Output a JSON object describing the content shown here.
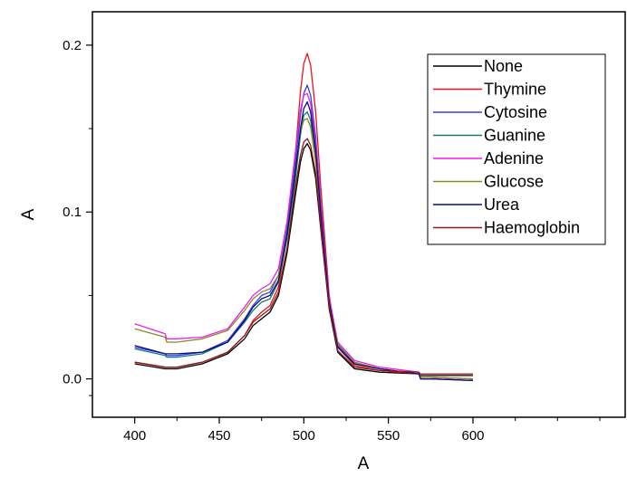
{
  "chart_data": {
    "type": "line",
    "title": "",
    "xlabel": "A",
    "ylabel": "A",
    "xlim": [
      375,
      690
    ],
    "ylim": [
      -0.023,
      0.22
    ],
    "x_ticks": [
      400,
      450,
      500,
      550,
      600
    ],
    "x_tick_labels": [
      "400",
      "450",
      "500",
      "550",
      "600"
    ],
    "y_ticks": [
      0.0,
      0.1,
      0.2
    ],
    "y_tick_labels": [
      "0.0",
      "0.1",
      "0.2"
    ],
    "grid": false,
    "legend_position": "top-right",
    "x": [
      400,
      418,
      419,
      425,
      440,
      455,
      465,
      470,
      475,
      480,
      485,
      490,
      495,
      498,
      500,
      502,
      504,
      507,
      510,
      515,
      520,
      530,
      545,
      568,
      569,
      575,
      600
    ],
    "series": [
      {
        "name": "None",
        "color": "#000000",
        "values": [
          0.009,
          0.006,
          0.006,
          0.006,
          0.009,
          0.015,
          0.024,
          0.032,
          0.036,
          0.04,
          0.05,
          0.075,
          0.11,
          0.13,
          0.138,
          0.141,
          0.137,
          0.12,
          0.09,
          0.042,
          0.016,
          0.006,
          0.004,
          0.003,
          0.002,
          0.002,
          0.002
        ]
      },
      {
        "name": "Thymine",
        "color": "#e8141c",
        "values": [
          0.01,
          0.007,
          0.007,
          0.007,
          0.01,
          0.016,
          0.026,
          0.035,
          0.04,
          0.044,
          0.055,
          0.085,
          0.135,
          0.172,
          0.189,
          0.195,
          0.188,
          0.16,
          0.115,
          0.05,
          0.019,
          0.008,
          0.005,
          0.003,
          0.001,
          0.001,
          0.0
        ]
      },
      {
        "name": "Cytosine",
        "color": "#3a3ae8",
        "values": [
          0.019,
          0.015,
          0.014,
          0.014,
          0.016,
          0.023,
          0.036,
          0.044,
          0.05,
          0.052,
          0.062,
          0.09,
          0.13,
          0.158,
          0.171,
          0.176,
          0.17,
          0.145,
          0.105,
          0.048,
          0.02,
          0.01,
          0.006,
          0.003,
          0.0,
          0.0,
          -0.001
        ]
      },
      {
        "name": "Guanine",
        "color": "#0e7f6e",
        "values": [
          0.018,
          0.014,
          0.013,
          0.013,
          0.015,
          0.022,
          0.034,
          0.041,
          0.046,
          0.048,
          0.058,
          0.084,
          0.12,
          0.146,
          0.158,
          0.16,
          0.155,
          0.133,
          0.097,
          0.045,
          0.019,
          0.009,
          0.006,
          0.003,
          0.0,
          0.0,
          -0.001
        ]
      },
      {
        "name": "Adenine",
        "color": "#ee1ee8",
        "values": [
          0.033,
          0.027,
          0.024,
          0.024,
          0.025,
          0.03,
          0.043,
          0.05,
          0.054,
          0.057,
          0.066,
          0.094,
          0.136,
          0.161,
          0.17,
          0.171,
          0.165,
          0.141,
          0.102,
          0.049,
          0.022,
          0.011,
          0.007,
          0.004,
          0.001,
          0.001,
          0.0
        ]
      },
      {
        "name": "Glucose",
        "color": "#8a8a22",
        "values": [
          0.03,
          0.025,
          0.022,
          0.022,
          0.024,
          0.029,
          0.041,
          0.048,
          0.052,
          0.054,
          0.062,
          0.087,
          0.125,
          0.148,
          0.155,
          0.156,
          0.151,
          0.13,
          0.095,
          0.046,
          0.021,
          0.01,
          0.006,
          0.003,
          0.001,
          0.001,
          0.0
        ]
      },
      {
        "name": "Urea",
        "color": "#0a0a7a",
        "values": [
          0.02,
          0.015,
          0.015,
          0.015,
          0.016,
          0.022,
          0.035,
          0.043,
          0.048,
          0.05,
          0.059,
          0.086,
          0.124,
          0.15,
          0.162,
          0.166,
          0.16,
          0.137,
          0.099,
          0.046,
          0.019,
          0.009,
          0.006,
          0.003,
          0.0,
          0.0,
          -0.001
        ]
      },
      {
        "name": "Haemoglobin",
        "color": "#8a1c1c",
        "values": [
          0.01,
          0.007,
          0.007,
          0.007,
          0.01,
          0.016,
          0.026,
          0.034,
          0.038,
          0.042,
          0.052,
          0.078,
          0.115,
          0.134,
          0.142,
          0.144,
          0.14,
          0.123,
          0.092,
          0.043,
          0.017,
          0.007,
          0.005,
          0.004,
          0.003,
          0.003,
          0.003
        ]
      }
    ]
  }
}
